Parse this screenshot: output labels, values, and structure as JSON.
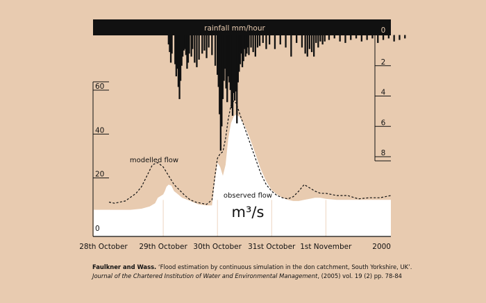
{
  "chart_data": {
    "type": "area",
    "colors": {
      "background": "#e8cbb0",
      "observed": "#ffffff",
      "bars": "#111111",
      "modelled_line": "#111111",
      "axis": "#111111"
    },
    "rainfall": {
      "title": "rainfall mm/hour",
      "ylim": [
        0,
        8
      ],
      "ticks": [
        0,
        2,
        4,
        6,
        8
      ],
      "x": [
        29.1,
        29.12,
        29.14,
        29.16,
        29.22,
        29.24,
        29.26,
        29.28,
        29.3,
        29.32,
        29.34,
        29.36,
        29.38,
        29.4,
        29.42,
        29.44,
        29.46,
        29.48,
        29.52,
        29.54,
        29.58,
        29.62,
        29.66,
        29.72,
        29.76,
        29.8,
        29.84,
        29.9,
        29.96,
        30.0,
        30.02,
        30.04,
        30.06,
        30.08,
        30.1,
        30.12,
        30.14,
        30.16,
        30.18,
        30.2,
        30.22,
        30.24,
        30.26,
        30.28,
        30.3,
        30.32,
        30.34,
        30.36,
        30.38,
        30.4,
        30.42,
        30.44,
        30.46,
        30.48,
        30.5,
        30.52,
        30.54,
        30.56,
        30.58,
        30.62,
        30.66,
        30.7,
        30.74,
        30.78,
        30.84,
        30.9,
        30.96,
        31.06,
        31.16,
        31.26,
        31.36,
        31.46,
        31.56,
        31.62,
        31.66,
        31.7,
        31.74,
        31.78,
        31.82,
        31.86,
        31.9,
        31.94,
        31.98,
        32.06,
        32.16,
        32.26,
        32.36,
        32.46,
        32.56,
        32.66,
        32.76,
        32.86,
        32.96,
        33.06,
        33.16,
        33.26,
        33.36,
        33.46
      ],
      "values": [
        0.6,
        1.1,
        1.8,
        1.2,
        1.9,
        2.7,
        2.2,
        3.4,
        4.2,
        3.0,
        2.0,
        1.4,
        1.0,
        0.9,
        1.3,
        2.2,
        1.8,
        1.2,
        1.4,
        0.9,
        1.8,
        2.1,
        1.6,
        1.2,
        1.0,
        1.5,
        0.8,
        1.3,
        2.0,
        2.6,
        3.4,
        5.2,
        7.6,
        6.0,
        4.2,
        3.0,
        2.2,
        3.5,
        4.4,
        2.7,
        3.1,
        3.6,
        4.8,
        5.3,
        3.8,
        4.3,
        3.7,
        5.8,
        3.1,
        2.4,
        1.9,
        1.2,
        2.1,
        1.7,
        0.9,
        1.4,
        1.2,
        0.8,
        1.3,
        0.8,
        1.1,
        1.4,
        0.8,
        0.7,
        0.5,
        0.9,
        0.6,
        0.9,
        0.6,
        0.8,
        1.4,
        0.5,
        0.8,
        1.2,
        1.4,
        0.9,
        1.1,
        1.4,
        0.5,
        0.8,
        0.4,
        0.6,
        0.4,
        0.3,
        0.2,
        0.4,
        0.5,
        0.3,
        0.2,
        0.4,
        0.3,
        0.2,
        0.5,
        0.3,
        0.2,
        0.4,
        0.3,
        0.2
      ]
    },
    "flow": {
      "unit_label": "m³/s",
      "ylim": [
        0,
        60
      ],
      "ticks": [
        0,
        20,
        40,
        60
      ],
      "xlim": [
        28.0,
        33.2
      ],
      "x_ticks": [
        {
          "x": 28.0,
          "label": "28th October"
        },
        {
          "x": 29.0,
          "label": "29th October"
        },
        {
          "x": 30.0,
          "label": "30th October"
        },
        {
          "x": 31.0,
          "label": "31st October"
        },
        {
          "x": 32.0,
          "label": "1st November"
        },
        {
          "x": 33.2,
          "label": "2000"
        }
      ],
      "series": [
        {
          "name": "observed flow",
          "x": [
            28.0,
            28.4,
            28.6,
            28.75,
            28.85,
            28.9,
            29.0,
            29.03,
            29.06,
            29.1,
            29.15,
            29.2,
            29.25,
            29.35,
            29.5,
            29.65,
            29.8,
            29.9,
            29.95,
            30.0,
            30.05,
            30.1,
            30.15,
            30.2,
            30.25,
            30.3,
            30.35,
            30.4,
            30.5,
            30.6,
            30.7,
            30.8,
            30.9,
            31.0,
            31.1,
            31.2,
            31.3,
            31.4,
            31.5,
            31.6,
            31.7,
            31.8,
            31.9,
            32.0,
            32.2,
            32.4,
            32.6,
            32.8,
            33.0,
            33.2
          ],
          "values": [
            5.5,
            5.5,
            6,
            7,
            8.5,
            11,
            12.5,
            14,
            16,
            17,
            16.5,
            14,
            13,
            11,
            9.5,
            8,
            7.5,
            7.5,
            18,
            27,
            25,
            21,
            26,
            38,
            45,
            48,
            49,
            48,
            44,
            38,
            31,
            24,
            18.5,
            14.5,
            12.5,
            11,
            10,
            9.5,
            9.5,
            10,
            10.5,
            11,
            11,
            10.5,
            10,
            10,
            10,
            10,
            10,
            10
          ]
        },
        {
          "name": "modelled flow",
          "x": [
            28.0,
            28.1,
            28.3,
            28.5,
            28.6,
            28.7,
            28.8,
            28.9,
            29.0,
            29.1,
            29.2,
            29.3,
            29.4,
            29.5,
            29.6,
            29.7,
            29.8,
            29.9,
            29.95,
            30.0,
            30.05,
            30.1,
            30.15,
            30.2,
            30.25,
            30.3,
            30.35,
            30.4,
            30.5,
            30.6,
            30.7,
            30.8,
            30.9,
            31.0,
            31.1,
            31.2,
            31.3,
            31.4,
            31.5,
            31.6,
            31.7,
            31.8,
            31.9,
            32.0,
            32.2,
            32.4,
            32.6,
            32.8,
            33.0,
            33.2
          ],
          "values": [
            9,
            8.5,
            9.5,
            13,
            16,
            21,
            26,
            27,
            25,
            21,
            17,
            14.5,
            12,
            10,
            9,
            8.5,
            8,
            10,
            20,
            29,
            31,
            32,
            38,
            47,
            53,
            55,
            54,
            50,
            43,
            36,
            29,
            22,
            17,
            14,
            12,
            11,
            10.5,
            11.5,
            14,
            17,
            15.5,
            14,
            13,
            13,
            12,
            12,
            10.5,
            11,
            11,
            12
          ]
        }
      ]
    }
  },
  "caption": {
    "authors": "Faulkner and Wass.",
    "title": " ‘Flood estimation by continuous simulation in the don catchment, South Yorkshire, UK’.",
    "journal": "Journal of the Chartered Institution of  Water and Environmental Management",
    "details": ", (2005) vol. 19 (2) pp. 78-84"
  }
}
